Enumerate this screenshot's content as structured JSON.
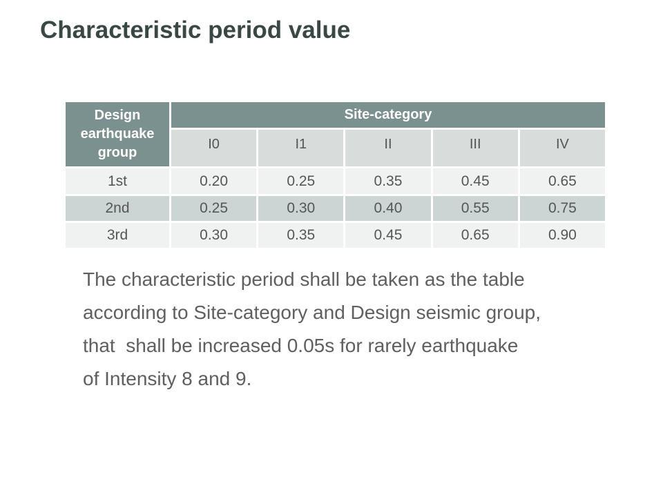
{
  "slide": {
    "title": "Characteristic period value"
  },
  "table": {
    "corner_header": "Design\nearthquake\ngroup",
    "group_header": "Site-category",
    "columns": [
      "I0",
      "I1",
      "II",
      "III",
      "IV"
    ],
    "rows": [
      {
        "label": "1st",
        "values": [
          "0.20",
          "0.25",
          "0.35",
          "0.45",
          "0.65"
        ]
      },
      {
        "label": "2nd",
        "values": [
          "0.25",
          "0.30",
          "0.40",
          "0.55",
          "0.75"
        ]
      },
      {
        "label": "3rd",
        "values": [
          "0.30",
          "0.35",
          "0.45",
          "0.65",
          "0.90"
        ]
      }
    ]
  },
  "paragraph": {
    "lines": [
      "The characteristic period shall be taken as the table",
      "according to Site-category and Design seismic group,",
      "that  shall be increased 0.05s for rarely earthquake",
      "of Intensity 8 and 9."
    ]
  },
  "colors": {
    "header_teal": "#7A918F",
    "subheader_gray": "#D8DCDB",
    "row_light": "#F0F2F1",
    "row_alt": "#CCD5D3",
    "title_color": "#3A4845",
    "body_text_color": "#5F5F5F"
  }
}
